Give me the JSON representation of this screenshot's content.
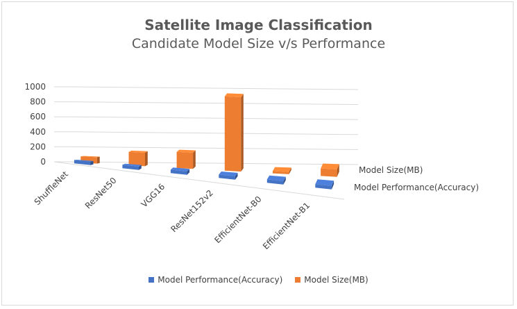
{
  "chart_data": {
    "type": "bar",
    "title": "Satellite Image Classification",
    "subtitle": "Candidate Model Size v/s Performance",
    "categories": [
      "ShuffleNet",
      "ResNet50",
      "VGG16",
      "ResNet152v2",
      "EfficientNet-B0",
      "EfficientNet-B1"
    ],
    "series": [
      {
        "name": "Model Performance(Accuracy)",
        "values": [
          96,
          97,
          97,
          98,
          98,
          98
        ],
        "color": "#4472c4"
      },
      {
        "name": "Model Size(MB)",
        "values": [
          85,
          180,
          215,
          990,
          30,
          100
        ],
        "color": "#ed7d31"
      }
    ],
    "yticks": [
      "0",
      "200",
      "400",
      "600",
      "800",
      "1000"
    ],
    "ylim": [
      0,
      1000
    ],
    "depth_labels": [
      "Model Size(MB)",
      "Model Performance(Accuracy)"
    ],
    "legend_position": "bottom",
    "grid": true,
    "style": "3d-column"
  }
}
